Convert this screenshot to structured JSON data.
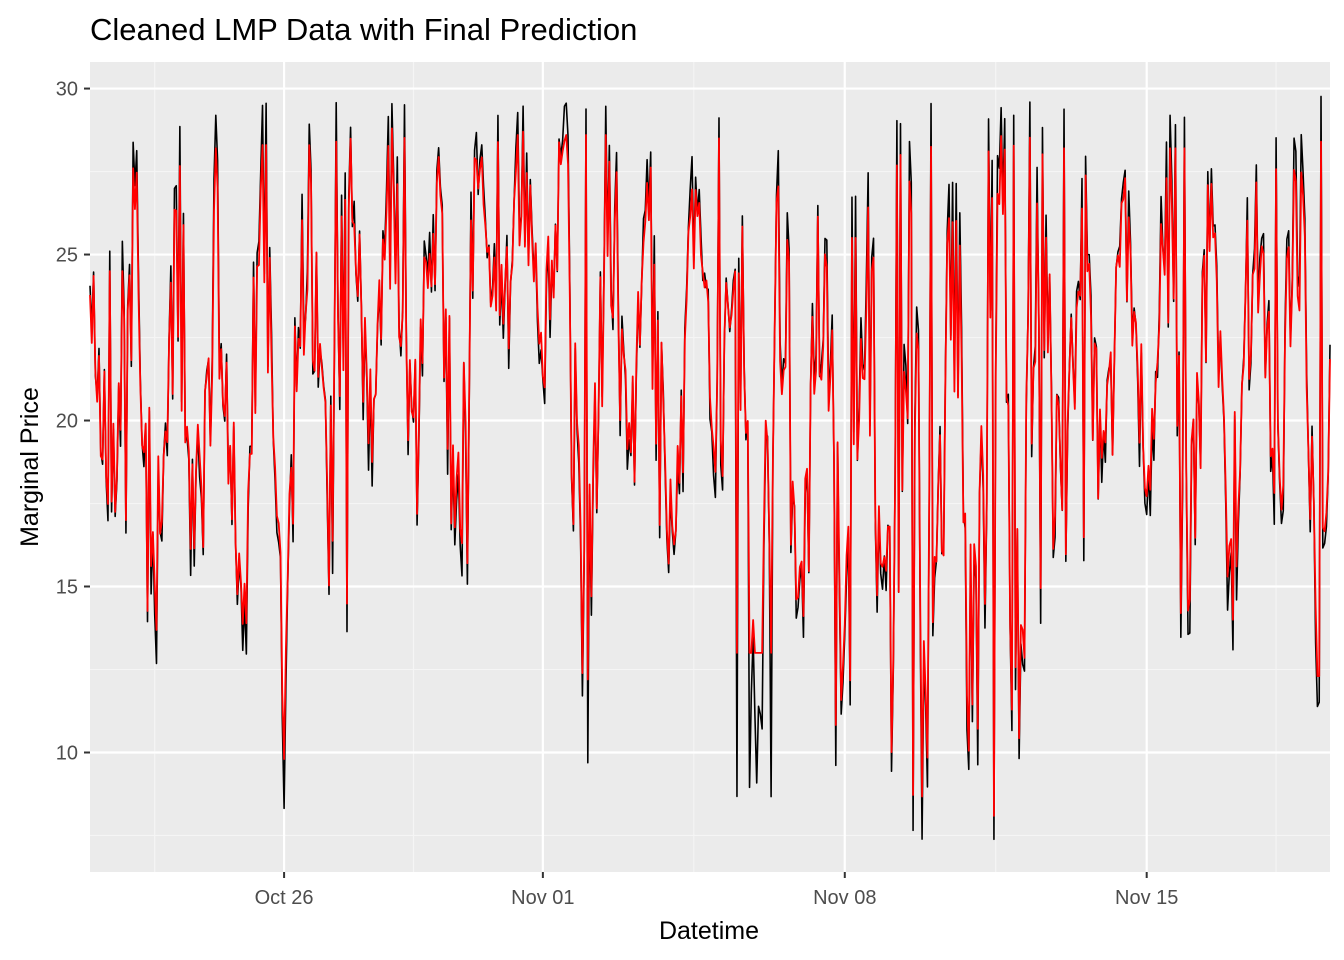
{
  "colors": {
    "panel": "#ebebeb",
    "grid_major": "#ffffff",
    "grid_minor": "#f5f5f5",
    "actual_series": "#000000",
    "prediction_series": "#ff0000",
    "tick_text": "#4d4d4d"
  },
  "chart_data": {
    "type": "line",
    "title": "Cleaned LMP Data with Final Prediction",
    "xlabel": "Datetime",
    "ylabel": "Marginal Price",
    "x_range": [
      "2024-10-21T12:00",
      "2024-11-19T06:00"
    ],
    "ylim": [
      6.4,
      30.8
    ],
    "x_ticks": [
      {
        "date": "2024-10-26",
        "label": "Oct 26"
      },
      {
        "date": "2024-11-01",
        "label": "Nov 01"
      },
      {
        "date": "2024-11-08",
        "label": "Nov 08"
      },
      {
        "date": "2024-11-15",
        "label": "Nov 15"
      }
    ],
    "y_ticks": [
      10,
      15,
      20,
      25,
      30
    ],
    "grid": true,
    "legend": "none",
    "sampling": "hourly",
    "series": [
      {
        "color": "#000000",
        "daily_low": [
          16.3,
          10.7,
          12.6,
          8.9,
          8.1,
          13.6,
          17.8,
          16.0,
          14.8,
          21.0,
          20.5,
          8.2,
          16.5,
          8.7,
          17.5,
          8.6,
          10.9,
          9.5,
          7.3,
          7.3,
          7.3,
          9.0,
          13.4,
          15.6,
          16.7,
          13.4,
          12.9,
          16.7,
          10.2,
          12.3
        ],
        "daily_high": [
          25.5,
          29.0,
          29.5,
          29.7,
          29.6,
          29.6,
          29.7,
          29.8,
          29.8,
          29.7,
          29.6,
          29.7,
          28.6,
          29.8,
          29.6,
          29.6,
          29.5,
          26.9,
          29.1,
          29.7,
          29.6,
          29.6,
          29.6,
          28.5,
          28.4,
          29.5,
          29.1,
          29.0,
          29.8,
          28.7
        ]
      },
      {
        "color": "#ff0000",
        "daily_low": [
          17.0,
          11.8,
          13.6,
          9.6,
          9.8,
          14.3,
          18.4,
          16.5,
          15.7,
          21.2,
          21.0,
          12.2,
          16.9,
          12.6,
          18.2,
          13.0,
          11.6,
          10.8,
          7.8,
          8.2,
          8.0,
          10.0,
          14.2,
          16.0,
          17.0,
          14.2,
          14.0,
          17.2,
          12.3,
          14.6
        ],
        "daily_high": [
          24.5,
          27.6,
          28.2,
          28.5,
          28.3,
          28.4,
          28.8,
          28.8,
          29.1,
          28.6,
          28.7,
          28.6,
          27.8,
          28.6,
          28.5,
          28.5,
          27.8,
          25.5,
          28.0,
          28.6,
          28.8,
          28.6,
          28.2,
          27.5,
          27.3,
          28.2,
          27.9,
          28.0,
          28.4,
          27.3
        ]
      }
    ]
  }
}
